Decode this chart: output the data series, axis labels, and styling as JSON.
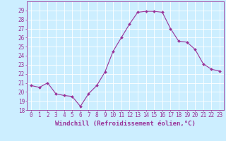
{
  "x": [
    0,
    1,
    2,
    3,
    4,
    5,
    6,
    7,
    8,
    9,
    10,
    11,
    12,
    13,
    14,
    15,
    16,
    17,
    18,
    19,
    20,
    21,
    22,
    23
  ],
  "y": [
    20.7,
    20.5,
    21.0,
    19.8,
    19.6,
    19.5,
    18.4,
    19.8,
    20.7,
    22.2,
    24.5,
    26.0,
    27.5,
    28.8,
    28.9,
    28.9,
    28.8,
    27.0,
    25.6,
    25.5,
    24.7,
    23.1,
    22.5,
    22.3
  ],
  "line_color": "#993399",
  "marker": "D",
  "marker_size": 2,
  "line_width": 0.8,
  "xlabel": "Windchill (Refroidissement éolien,°C)",
  "xlim": [
    -0.5,
    23.5
  ],
  "ylim": [
    18,
    30
  ],
  "yticks": [
    18,
    19,
    20,
    21,
    22,
    23,
    24,
    25,
    26,
    27,
    28,
    29
  ],
  "xticks": [
    0,
    1,
    2,
    3,
    4,
    5,
    6,
    7,
    8,
    9,
    10,
    11,
    12,
    13,
    14,
    15,
    16,
    17,
    18,
    19,
    20,
    21,
    22,
    23
  ],
  "xtick_labels": [
    "0",
    "1",
    "2",
    "3",
    "4",
    "5",
    "6",
    "7",
    "8",
    "9",
    "10",
    "11",
    "12",
    "13",
    "14",
    "15",
    "16",
    "17",
    "18",
    "19",
    "20",
    "21",
    "22",
    "23"
  ],
  "background_color": "#cceeff",
  "grid_color": "#ffffff",
  "tick_color": "#993399",
  "label_color": "#993399",
  "tick_fontsize": 5.5,
  "xlabel_fontsize": 6.5
}
